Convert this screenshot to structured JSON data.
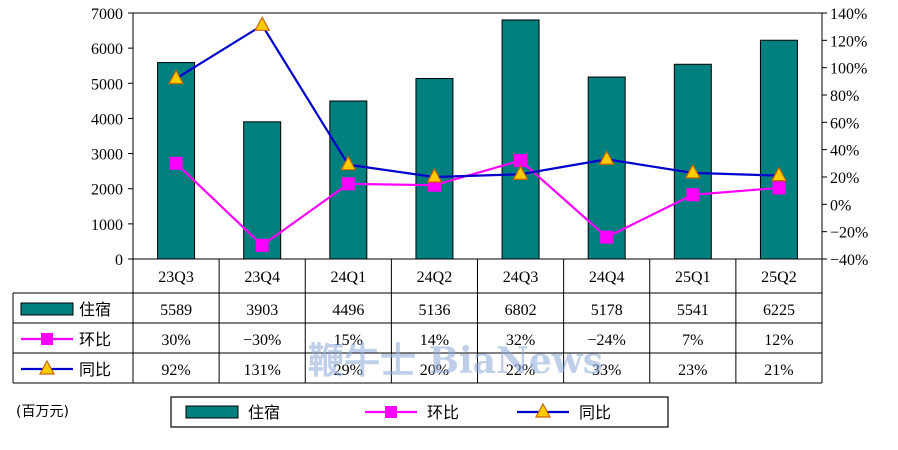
{
  "chart_data": {
    "type": "bar",
    "categories": [
      "23Q3",
      "23Q4",
      "24Q1",
      "24Q2",
      "24Q3",
      "24Q4",
      "25Q1",
      "25Q2"
    ],
    "series": [
      {
        "name": "住宿",
        "type": "bar",
        "axis": "left",
        "values": [
          5589,
          3903,
          4496,
          5136,
          6802,
          5178,
          5541,
          6225
        ],
        "color": "#007f7f"
      },
      {
        "name": "环比",
        "type": "line",
        "axis": "right",
        "values": [
          30,
          -30,
          15,
          14,
          32,
          -24,
          7,
          12
        ],
        "color": "#ff00ff",
        "marker": "square"
      },
      {
        "name": "同比",
        "type": "line",
        "axis": "right",
        "values": [
          92,
          131,
          29,
          20,
          22,
          33,
          23,
          21
        ],
        "color": "#0000cc",
        "marker": "triangle"
      }
    ],
    "left_axis": {
      "min": 0,
      "max": 7000,
      "ticks": [
        0,
        1000,
        2000,
        3000,
        4000,
        5000,
        6000,
        7000
      ]
    },
    "right_axis": {
      "min": -40,
      "max": 140,
      "ticks": [
        "-40%",
        "-20%",
        "0%",
        "20%",
        "40%",
        "60%",
        "80%",
        "100%",
        "120%",
        "140%"
      ]
    },
    "table_rows": [
      {
        "label": "住宿",
        "cells": [
          "5589",
          "3903",
          "4496",
          "5136",
          "6802",
          "5178",
          "5541",
          "6225"
        ]
      },
      {
        "label": "环比",
        "cells": [
          "30%",
          "-30%",
          "15%",
          "14%",
          "32%",
          "-24%",
          "7%",
          "12%"
        ]
      },
      {
        "label": "同比",
        "cells": [
          "92%",
          "131%",
          "29%",
          "20%",
          "22%",
          "33%",
          "23%",
          "21%"
        ]
      }
    ],
    "unit_label": "(百万元)",
    "legend": [
      "住宿",
      "环比",
      "同比"
    ],
    "legend_position": "bottom",
    "grid": false
  },
  "watermark": "鞭牛士 BiaNews"
}
